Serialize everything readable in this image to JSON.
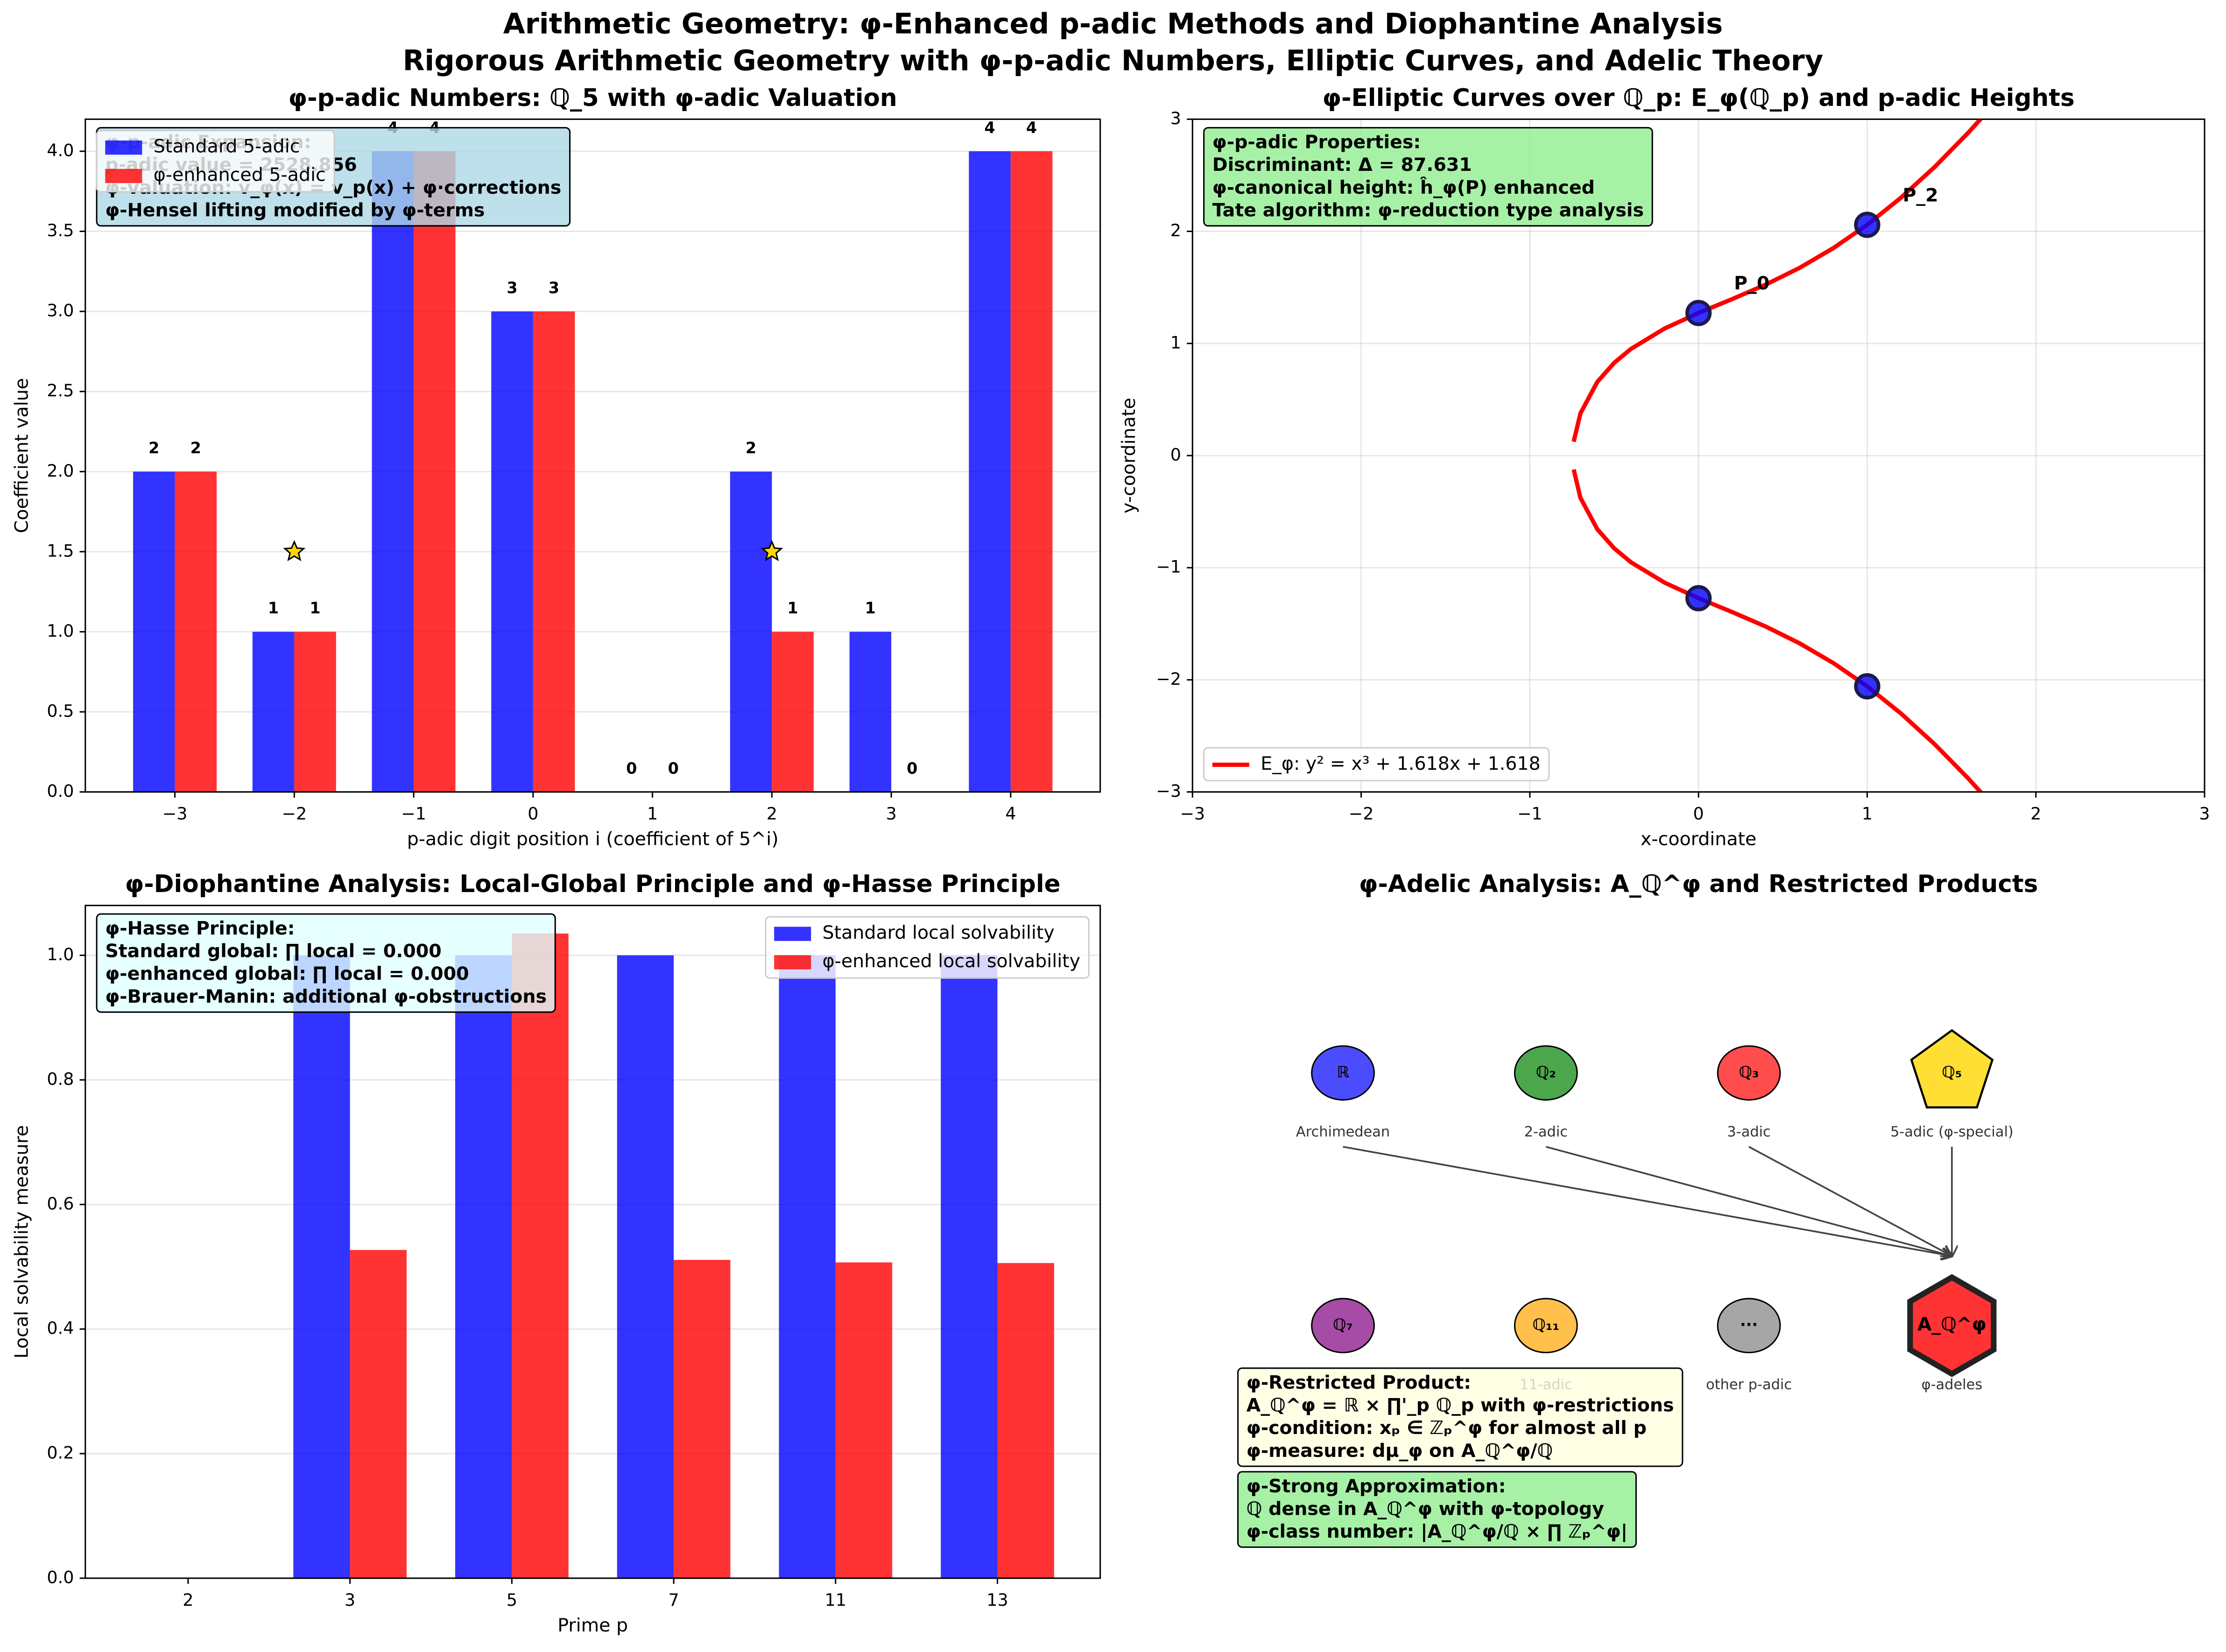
{
  "title": "Arithmetic Geometry: φ-Enhanced p-adic Methods and Diophantine Analysis",
  "subtitle": "Rigorous Arithmetic Geometry with φ-p-adic Numbers, Elliptic Curves, and Adelic Theory",
  "chart_data": [
    {
      "type": "bar",
      "title": "φ-p-adic Numbers: ℚ_5 with φ-adic Valuation",
      "x_label": "p-adic digit position i (coefficient of 5^i)",
      "y_label": "Coefficient value",
      "categories": [
        "−3",
        "−2",
        "−1",
        "0",
        "1",
        "2",
        "3",
        "4"
      ],
      "series": [
        {
          "name": "Standard 5-adic",
          "color": "#0000ff",
          "values": [
            2,
            1,
            4,
            3,
            0,
            2,
            1,
            4
          ]
        },
        {
          "name": "φ-enhanced 5-adic",
          "color": "#ff0000",
          "values": [
            2,
            1,
            4,
            3,
            0,
            1,
            0,
            4
          ]
        }
      ],
      "show_values": true,
      "markers": {
        "x": [
          "−2",
          "2"
        ],
        "y": [
          1.5,
          1.5
        ],
        "color": "#ffd700"
      },
      "ylim": [
        0,
        4.2
      ],
      "yticks": [
        {
          "value": 0,
          "label": "0.0"
        },
        {
          "value": 0.5,
          "label": "0.5"
        },
        {
          "value": 1,
          "label": "1.0"
        },
        {
          "value": 1.5,
          "label": "1.5"
        },
        {
          "value": 2,
          "label": "2.0"
        },
        {
          "value": 2.5,
          "label": "2.5"
        },
        {
          "value": 3,
          "label": "3.0"
        },
        {
          "value": 3.5,
          "label": "3.5"
        },
        {
          "value": 4,
          "label": "4.0"
        }
      ],
      "grid": true,
      "legend": "upper left",
      "annotation": {
        "lines": [
          "φ-p-adic Expansion:",
          "p-adic value = 2528.856",
          "φ-valuation: v_φ(x) = v_p(x) + φ·corrections",
          "φ-Hensel lifting modified by φ-terms"
        ],
        "color": "#add8e6"
      }
    },
    {
      "type": "line",
      "title": "φ-Elliptic Curves over ℚ_p: E_φ(ℚ_p) and p-adic Heights",
      "x_label": "x-coordinate",
      "y_label": "y-coordinate",
      "series": [
        {
          "name": "E_φ: y² = x³ + 1.618x + 1.618",
          "color": "#ff0000",
          "x": [
            1.7,
            1.6,
            1.4,
            1.2,
            1.0,
            0.8,
            0.6,
            0.4,
            0.2,
            0,
            -0.2,
            -0.4,
            -0.5,
            -0.6,
            -0.7,
            -0.74,
            -0.745,
            -0.74,
            -0.7,
            -0.6,
            -0.5,
            -0.4,
            -0.2,
            0,
            0.2,
            0.4,
            0.6,
            0.8,
            1.0,
            1.2,
            1.4,
            1.6,
            1.7
          ],
          "values": [
            3.047,
            2.881,
            2.574,
            2.3,
            2.058,
            1.851,
            1.675,
            1.526,
            1.396,
            1.272,
            1.134,
            0.952,
            0.827,
            0.657,
            0.377,
            0.124,
            null,
            -0.124,
            -0.377,
            -0.657,
            -0.827,
            -0.952,
            -1.134,
            -1.272,
            -1.396,
            -1.526,
            -1.675,
            -1.851,
            -2.058,
            -2.3,
            -2.574,
            -2.881,
            -3.047
          ]
        }
      ],
      "points": {
        "x": [
          0,
          1,
          0,
          1
        ],
        "y": [
          1.272,
          2.058,
          -1.272,
          -2.058
        ],
        "labels": [
          "P_0",
          "P_2",
          null,
          null
        ],
        "color": "#0000ff"
      },
      "xlim": [
        -3,
        3
      ],
      "ylim": [
        -3,
        3
      ],
      "xticks": [
        {
          "value": -3,
          "label": "−3"
        },
        {
          "value": -2,
          "label": "−2"
        },
        {
          "value": -1,
          "label": "−1"
        },
        0,
        1,
        2,
        3
      ],
      "yticks": [
        {
          "value": -3,
          "label": "−3"
        },
        {
          "value": -2,
          "label": "−2"
        },
        {
          "value": -1,
          "label": "−1"
        },
        0,
        1,
        2,
        3
      ],
      "grid": true,
      "legend": "lower left",
      "annotation": {
        "lines": [
          "φ-p-adic Properties:",
          "Discriminant: Δ = 87.631",
          "φ-canonical height: ĥ_φ(P) enhanced",
          "Tate algorithm: φ-reduction type analysis"
        ],
        "color": "#90ee90"
      }
    },
    {
      "type": "bar",
      "title": "φ-Diophantine Analysis: Local-Global Principle and φ-Hasse Principle",
      "x_label": "Prime p",
      "y_label": "Local solvability measure",
      "categories": [
        "2",
        "3",
        "5",
        "7",
        "11",
        "13"
      ],
      "series": [
        {
          "name": "Standard local solvability",
          "color": "#0000ff",
          "values": [
            0,
            1,
            1,
            1,
            1,
            1
          ]
        },
        {
          "name": "φ-enhanced local solvability",
          "color": "#ff0000",
          "values": [
            0,
            0.527,
            1.035,
            0.511,
            0.507,
            0.506
          ]
        }
      ],
      "ylim": [
        0,
        1.08
      ],
      "yticks": [
        {
          "value": 0,
          "label": "0.0"
        },
        {
          "value": 0.2,
          "label": "0.2"
        },
        {
          "value": 0.4,
          "label": "0.4"
        },
        {
          "value": 0.6,
          "label": "0.6"
        },
        {
          "value": 0.8,
          "label": "0.8"
        },
        {
          "value": 1,
          "label": "1.0"
        }
      ],
      "grid": true,
      "legend": "upper right",
      "annotation": {
        "lines": [
          "φ-Hasse Principle:",
          "Standard global: ∏ local = 0.000",
          "φ-enhanced global: ∏ local = 0.000",
          "φ-Brauer-Manin: additional φ-obstructions"
        ],
        "color": "#e0ffff"
      }
    },
    {
      "type": "diagram",
      "title": "φ-Adelic Analysis: A_ℚ^φ and Restricted Products",
      "nodes": [
        {
          "symbol": "ℝ",
          "label": "Archimedean",
          "color": "#0000ff",
          "shape": "circle"
        },
        {
          "symbol": "ℚ₂",
          "label": "2-adic",
          "color": "#008000",
          "shape": "circle"
        },
        {
          "symbol": "ℚ₃",
          "label": "3-adic",
          "color": "#ff0000",
          "shape": "circle"
        },
        {
          "symbol": "ℚ₅",
          "label": "5-adic (φ-special)",
          "color": "#ffd700",
          "shape": "pentagon"
        },
        {
          "symbol": "ℚ₇",
          "label": null,
          "color": "#800080",
          "shape": "circle"
        },
        {
          "symbol": "ℚ₁₁",
          "label": "11-adic",
          "color": "#ffa500",
          "shape": "circle"
        },
        {
          "symbol": "···",
          "label": "other p-adic",
          "color": "#808080",
          "shape": "circle"
        },
        {
          "symbol": "A_ℚ^φ",
          "label": "φ-adeles",
          "color": "#ff0000",
          "shape": "hexagon"
        }
      ],
      "edges": [
        [
          0,
          7
        ],
        [
          1,
          7
        ],
        [
          2,
          7
        ],
        [
          3,
          7
        ]
      ],
      "annotations": [
        {
          "lines": [
            "φ-Restricted Product:",
            "A_ℚ^φ = ℝ × ∏'_p ℚ_p with φ-restrictions",
            "φ-condition: xₚ ∈ ℤₚ^φ for almost all p",
            "φ-measure: dμ_φ on A_ℚ^φ/ℚ"
          ],
          "color": "#ffffe0"
        },
        {
          "lines": [
            "φ-Strong Approximation:",
            "ℚ dense in A_ℚ^φ with φ-topology",
            "φ-class number: |A_ℚ^φ/ℚ × ∏ ℤₚ^φ|"
          ],
          "color": "#90ee90"
        }
      ]
    }
  ]
}
